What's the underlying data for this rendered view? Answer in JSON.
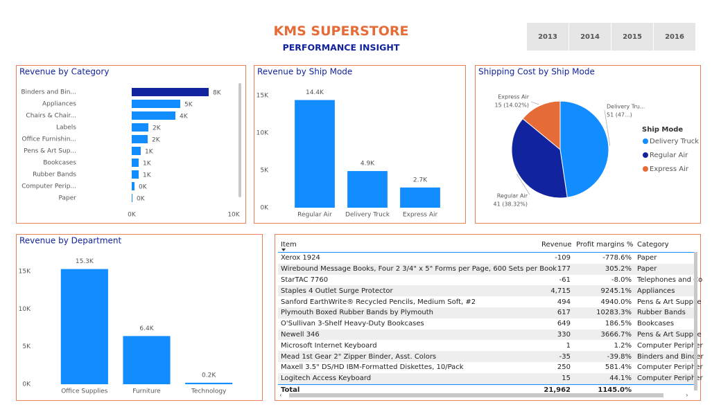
{
  "header": {
    "title": "KMS SUPERSTORE",
    "subtitle": "PERFORMANCE INSIGHT"
  },
  "years": [
    "2013",
    "2014",
    "2015",
    "2016"
  ],
  "chart_data": [
    {
      "type": "bar",
      "horizontal": true,
      "title": "Revenue by Category",
      "categories": [
        "Binders and Bin...",
        "Appliances",
        "Chairs & Chair...",
        "Labels",
        "Office Furnishin...",
        "Pens & Art Sup...",
        "Bookcases",
        "Rubber Bands",
        "Computer Perip...",
        "Paper"
      ],
      "values": [
        7551,
        4762,
        4286,
        1633,
        1565,
        884,
        680,
        680,
        272,
        68
      ],
      "value_labels": [
        "8K",
        "5K",
        "4K",
        "2K",
        "2K",
        "1K",
        "1K",
        "1K",
        "0K",
        "0K"
      ],
      "colors": [
        "#12239e",
        "#118dff",
        "#118dff",
        "#118dff",
        "#118dff",
        "#118dff",
        "#118dff",
        "#118dff",
        "#118dff",
        "#118dff"
      ],
      "xlim": [
        0,
        10000
      ],
      "xticks": [
        {
          "value": 0,
          "label": "0K"
        },
        {
          "value": 10000,
          "label": "10K"
        }
      ]
    },
    {
      "type": "bar",
      "title": "Revenue by Ship Mode",
      "categories": [
        "Regular Air",
        "Delivery Truck",
        "Express Air"
      ],
      "values": [
        14400,
        4900,
        2700
      ],
      "value_labels": [
        "14.4K",
        "4.9K",
        "2.7K"
      ],
      "color": "#118dff",
      "ylim": [
        0,
        15000
      ],
      "yticks": [
        {
          "value": 0,
          "label": "0K"
        },
        {
          "value": 5000,
          "label": "5K"
        },
        {
          "value": 10000,
          "label": "10K"
        },
        {
          "value": 15000,
          "label": "15K"
        }
      ]
    },
    {
      "type": "pie",
      "title": "Shipping Cost by Ship Mode",
      "legend_title": "Ship Mode",
      "categories": [
        "Delivery Truck",
        "Regular Air",
        "Express Air"
      ],
      "slice_labels": [
        "Delivery Tru...",
        "Regular Air",
        "Express Air"
      ],
      "values": [
        51,
        41,
        15
      ],
      "value_labels": [
        "51 (47...)",
        "41 (38.32%)",
        "15 (14.02%)"
      ],
      "colors": [
        "#118dff",
        "#12239e",
        "#e66c37"
      ]
    },
    {
      "type": "bar",
      "title": "Revenue by Department",
      "categories": [
        "Office Supplies",
        "Furniture",
        "Technology"
      ],
      "values": [
        15300,
        6400,
        200
      ],
      "value_labels": [
        "15.3K",
        "6.4K",
        "0.2K"
      ],
      "color": "#118dff",
      "ylim": [
        0,
        16000
      ],
      "yticks": [
        {
          "value": 0,
          "label": "0K"
        },
        {
          "value": 5000,
          "label": "5K"
        },
        {
          "value": 10000,
          "label": "10K"
        },
        {
          "value": 15000,
          "label": "15K"
        }
      ]
    }
  ],
  "table": {
    "columns": [
      "Item",
      "Revenue",
      "Profit margins %",
      "Category"
    ],
    "rows": [
      [
        "Xerox 1924",
        "-109",
        "-778.6%",
        "Paper"
      ],
      [
        "Wirebound Message Books, Four 2 3/4\" x 5\" Forms per Page, 600 Sets per Book",
        "177",
        "305.2%",
        "Paper"
      ],
      [
        "StarTAC 7760",
        "-61",
        "-8.0%",
        "Telephones and Co"
      ],
      [
        "Staples 4 Outlet Surge Protector",
        "4,715",
        "9245.1%",
        "Appliances"
      ],
      [
        "Sanford EarthWrite® Recycled Pencils, Medium Soft, #2",
        "494",
        "4940.0%",
        "Pens & Art Supplie"
      ],
      [
        "Plymouth Boxed Rubber Bands by Plymouth",
        "617",
        "10283.3%",
        "Rubber Bands"
      ],
      [
        "O'Sullivan 3-Shelf Heavy-Duty Bookcases",
        "649",
        "186.5%",
        "Bookcases"
      ],
      [
        "Newell 346",
        "330",
        "3666.7%",
        "Pens & Art Supplie"
      ],
      [
        "Microsoft Internet Keyboard",
        "1",
        "1.2%",
        "Computer Peripher"
      ],
      [
        "Mead 1st Gear 2\" Zipper Binder, Asst. Colors",
        "-35",
        "-39.8%",
        "Binders and Binder"
      ],
      [
        "Maxell 3.5\" DS/HD IBM-Formatted Diskettes, 10/Pack",
        "250",
        "581.4%",
        "Computer Peripher"
      ],
      [
        "Logitech Access Keyboard",
        "15",
        "44.1%",
        "Computer Peripher"
      ]
    ],
    "total": [
      "Total",
      "21,962",
      "1145.0%"
    ]
  }
}
